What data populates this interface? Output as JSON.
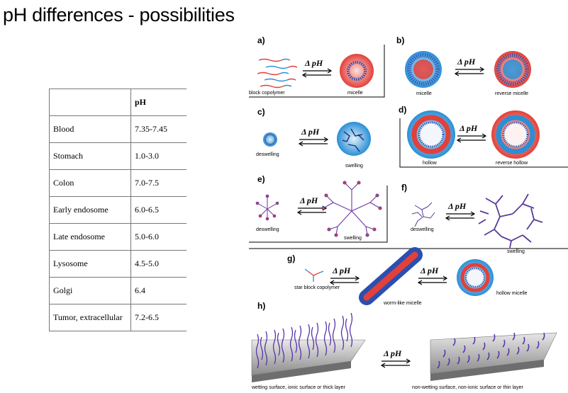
{
  "title": "pH differences - possibilities",
  "table": {
    "header": [
      "",
      "pH"
    ],
    "rows": [
      [
        "Blood",
        "7.35-7.45"
      ],
      [
        "Stomach",
        "1.0-3.0"
      ],
      [
        "Colon",
        "7.0-7.5"
      ],
      [
        "Early endosome",
        "6.0-6.5"
      ],
      [
        "Late endosome",
        "5.0-6.0"
      ],
      [
        "Lysosome",
        "4.5-5.0"
      ],
      [
        "Golgi",
        "6.4"
      ],
      [
        "Tumor, extracellular",
        "7.2-6.5"
      ]
    ]
  },
  "figure": {
    "delta_ph": "Δ pH",
    "panels": [
      {
        "label": "a)",
        "left": "block copolymer",
        "right": "micelle"
      },
      {
        "label": "b)",
        "left": "micelle",
        "right": "reverse micelle"
      },
      {
        "label": "c)",
        "left": "deswelling",
        "right": "swelling"
      },
      {
        "label": "d)",
        "left": "hollow",
        "right": "reverse hollow"
      },
      {
        "label": "e)",
        "left": "deswelling",
        "right": "swelling"
      },
      {
        "label": "f)",
        "left": "deswelling",
        "right": "swelling"
      },
      {
        "label": "g)",
        "left": "star block copolymer",
        "middle": "worm-like micelle",
        "right": "hollow micelle"
      },
      {
        "label": "h)",
        "left": "wetting surface, ionic surface or thick layer",
        "right": "non-wetting surface, non-ionic surface or thin layer"
      }
    ]
  },
  "colors": {
    "red": "#e2403a",
    "blue": "#2a8fd6",
    "purple": "#4b2c8c"
  }
}
